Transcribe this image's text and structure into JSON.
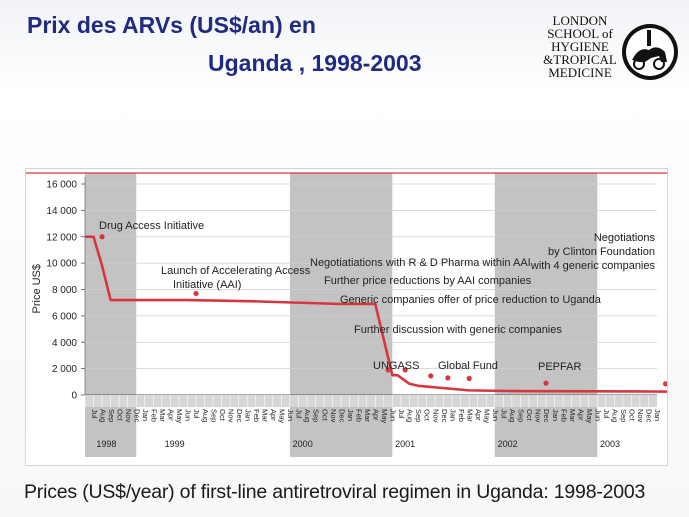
{
  "title": {
    "line1": "Prix des ARVs (US$/an) en",
    "line2": "Uganda , 1998-2003"
  },
  "logo": {
    "lines": [
      "LONDON",
      "SCHOOL of",
      "HYGIENE",
      "&TROPICAL",
      "MEDICINE"
    ]
  },
  "caption": "Prices (US$/year) of first-line antiretroviral regimen in Uganda: 1998-2003",
  "colors": {
    "title": "#1f2a80",
    "line": "#d6373f",
    "band": "#b8b8b8"
  },
  "chart_data": {
    "type": "line",
    "ylabel": "Price US$",
    "ylim": [
      0,
      16000
    ],
    "yticks": [
      "16 000",
      "14 000",
      "12 000",
      "10 000",
      "8 000",
      "6 000",
      "4 000",
      "2 000",
      "0"
    ],
    "ytick_values": [
      16000,
      14000,
      12000,
      10000,
      8000,
      6000,
      4000,
      2000,
      0
    ],
    "months": [
      "Jul",
      "Aug",
      "Sep",
      "Oct",
      "Nov",
      "Dec",
      "Jan",
      "Feb",
      "Mar",
      "Apr",
      "May",
      "Jun",
      "Jul",
      "Aug",
      "Sep",
      "Oct",
      "Nov",
      "Dec",
      "Jan",
      "Feb",
      "Mar",
      "Apr",
      "May",
      "Jun",
      "Jul",
      "Aug",
      "Sep",
      "Oct",
      "Nov",
      "Dec",
      "Jan",
      "Feb",
      "Mar",
      "Apr",
      "May",
      "Jun",
      "Jul",
      "Aug",
      "Sep",
      "Oct",
      "Nov",
      "Dec",
      "Jan",
      "Feb",
      "Mar",
      "Apr",
      "May",
      "Jun",
      "Jul",
      "Aug",
      "Sep",
      "Oct",
      "Nov",
      "Dec",
      "Jan",
      "Feb",
      "Mar",
      "Apr",
      "May",
      "Jun",
      "Jul",
      "Aug",
      "Sep",
      "Oct",
      "Nov",
      "Dec",
      "Jan"
    ],
    "years": [
      {
        "label": "1998",
        "month_index": 1
      },
      {
        "label": "1999",
        "month_index": 9
      },
      {
        "label": "2000",
        "month_index": 24
      },
      {
        "label": "2001",
        "month_index": 36
      },
      {
        "label": "2002",
        "month_index": 48
      },
      {
        "label": "2003",
        "month_index": 60
      }
    ],
    "shaded_years": [
      [
        0,
        6
      ],
      [
        24,
        36
      ],
      [
        48,
        60
      ],
      [
        72,
        75
      ]
    ],
    "series": [
      {
        "x": [
          0,
          1,
          2,
          3,
          12,
          20,
          30,
          34,
          36,
          36.6,
          38,
          39,
          45,
          50,
          60,
          70,
          72
        ],
        "y": [
          12000,
          12000,
          9800,
          7200,
          7200,
          7100,
          6900,
          6900,
          1500,
          1500,
          850,
          700,
          350,
          300,
          280,
          250,
          80
        ]
      }
    ],
    "annotations": [
      {
        "lines": [
          "Drug Access Initiative"
        ],
        "x": 2,
        "y": 12000
      },
      {
        "lines": [
          "Launch of Accelerating Access",
          "Initiative (AAI)"
        ],
        "x": 13,
        "y": 7700
      },
      {
        "lines": [
          "Negotiatiations with R & D Pharma within AAI"
        ],
        "x": 35.5,
        "y": 1900
      },
      {
        "lines": [
          "Further price reductions by AAI companies"
        ],
        "x": 37.5,
        "y": 1900
      },
      {
        "lines": [
          "Generic companies offer of price reduction to Uganda"
        ],
        "x": 40.5,
        "y": 1450
      },
      {
        "lines": [
          "Further discussion with generic companies"
        ],
        "x": 42.5,
        "y": 1300
      },
      {
        "lines": [
          "UNGASS"
        ],
        "x": 45,
        "y": 1250
      },
      {
        "lines": [
          "Global Fund"
        ],
        "x": 54,
        "y": 900
      },
      {
        "lines": [
          "PEPFAR"
        ],
        "x": 68,
        "y": 850
      },
      {
        "lines": [
          "Negotiations",
          "by Clinton Foundation",
          "with 4 generic companies"
        ],
        "x": 76,
        "y": 950
      }
    ]
  }
}
